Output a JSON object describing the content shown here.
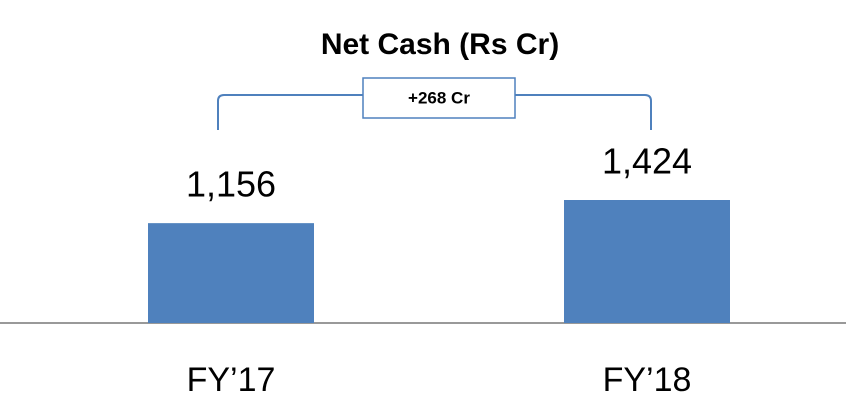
{
  "chart_data": {
    "type": "bar",
    "title": "Net Cash (Rs Cr)",
    "annotation": "+268 Cr",
    "categories": [
      "FY’17",
      "FY’18"
    ],
    "values": [
      1156,
      1424
    ],
    "value_labels": [
      "1,156",
      "1,424"
    ],
    "color": "#4f81bd"
  }
}
